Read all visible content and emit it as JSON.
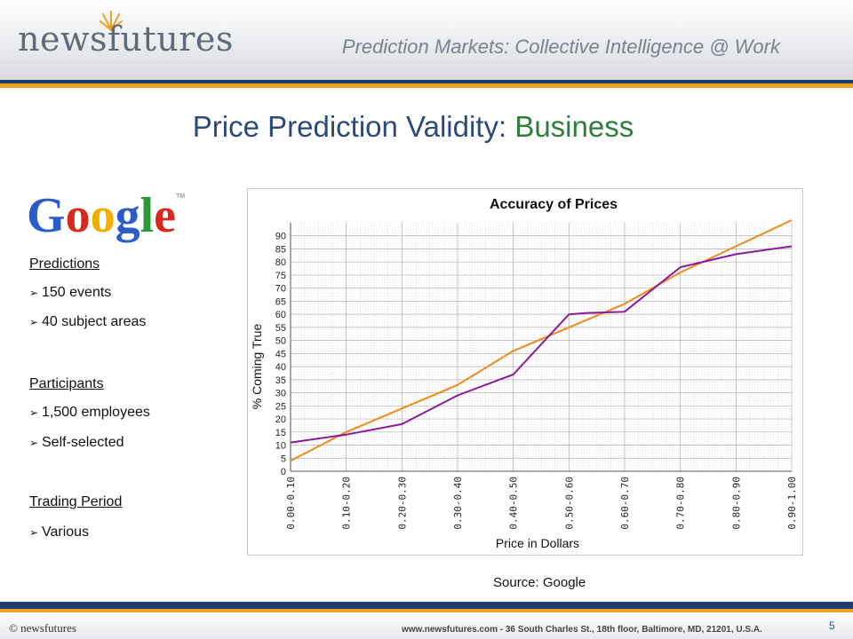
{
  "header": {
    "logo_text": "newsfutures",
    "tagline": "Prediction Markets: Collective Intelligence @ Work"
  },
  "slide": {
    "title_main": "Price Prediction Validity: ",
    "title_accent": "Business"
  },
  "company_logo": "Google",
  "sidebar": {
    "sections": [
      {
        "heading": "Predictions",
        "items": [
          "150 events",
          "40 subject areas"
        ]
      },
      {
        "heading": "Participants",
        "items": [
          "1,500 employees",
          "Self-selected"
        ]
      },
      {
        "heading": "Trading Period",
        "items": [
          "Various"
        ]
      }
    ]
  },
  "source_note": "Source: Google",
  "footer": {
    "copyright": "© newsfutures",
    "address": "www.newsfutures.com  -  36 South Charles St., 18th floor, Baltimore, MD, 21201, U.S.A.",
    "page_number": "5"
  },
  "colors": {
    "series_perfect": "#f08a1c",
    "series_actual": "#8b1a9c",
    "title_blue": "#2d4b7a",
    "title_green": "#2e7d3b"
  },
  "chart_data": {
    "type": "line",
    "title": "Accuracy of Prices",
    "xlabel": "Price in Dollars",
    "ylabel": "% Coming True",
    "categories": [
      "0.00-0.10",
      "0.10-0.20",
      "0.20-0.30",
      "0.30-0.40",
      "0.40-0.50",
      "0.50-0.60",
      "0.60-0.70",
      "0.70-0.80",
      "0.80-0.90",
      "0.90-1.00"
    ],
    "y_ticks": [
      0,
      5,
      10,
      15,
      20,
      25,
      30,
      35,
      40,
      45,
      50,
      55,
      60,
      65,
      70,
      75,
      80,
      85,
      90
    ],
    "ylim": [
      0,
      95
    ],
    "grid": true,
    "series": [
      {
        "x": [
          0,
          1,
          2,
          3,
          4,
          5,
          6,
          7,
          8,
          9
        ],
        "values": [
          4,
          15,
          24,
          33,
          46,
          55,
          64,
          76,
          86,
          96
        ]
      },
      {
        "x": [
          0,
          1,
          2,
          3,
          4,
          5,
          5.3,
          6,
          7,
          8,
          9
        ],
        "values": [
          11,
          14,
          18,
          29,
          37,
          60,
          60.5,
          61,
          78,
          83,
          86
        ]
      }
    ]
  }
}
